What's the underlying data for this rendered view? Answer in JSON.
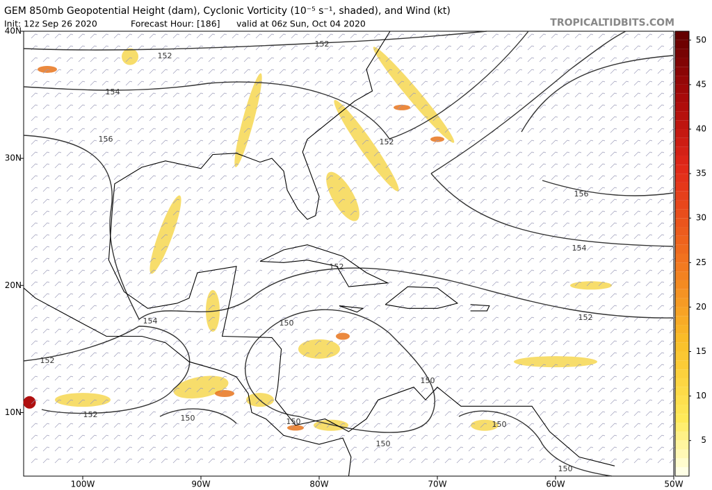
{
  "header": {
    "title": "GEM 850mb Geopotential Height (dam), Cyclonic Vorticity (10⁻⁵ s⁻¹, shaded), and Wind (kt)",
    "init": "Init: 12z Sep 26 2020",
    "forecast_hour": "Forecast Hour: [186]",
    "valid": "valid at 06z Sun, Oct 04 2020",
    "source": "TROPICALTIDBITS.COM"
  },
  "map": {
    "lonlim": [
      -105,
      -50
    ],
    "latlim": [
      5,
      40
    ],
    "lonticks": [
      {
        "value": -100,
        "label": "100W"
      },
      {
        "value": -90,
        "label": "90W"
      },
      {
        "value": -80,
        "label": "80W"
      },
      {
        "value": -70,
        "label": "70W"
      },
      {
        "value": -60,
        "label": "60W"
      },
      {
        "value": -50,
        "label": "50W"
      }
    ],
    "latticks": [
      {
        "value": 40,
        "label": "40N"
      },
      {
        "value": 30,
        "label": "30N"
      },
      {
        "value": 20,
        "label": "20N"
      },
      {
        "value": 10,
        "label": "10N"
      }
    ],
    "contour_labels": [
      "152",
      "152",
      "154",
      "156",
      "152",
      "156",
      "154",
      "152",
      "152",
      "154",
      "150",
      "152",
      "150",
      "152",
      "150",
      "150",
      "150",
      "150",
      "150"
    ]
  },
  "colorbar": {
    "range": [
      1,
      51
    ],
    "ticks": [
      5,
      10,
      15,
      20,
      25,
      30,
      35,
      40,
      45,
      50
    ]
  }
}
